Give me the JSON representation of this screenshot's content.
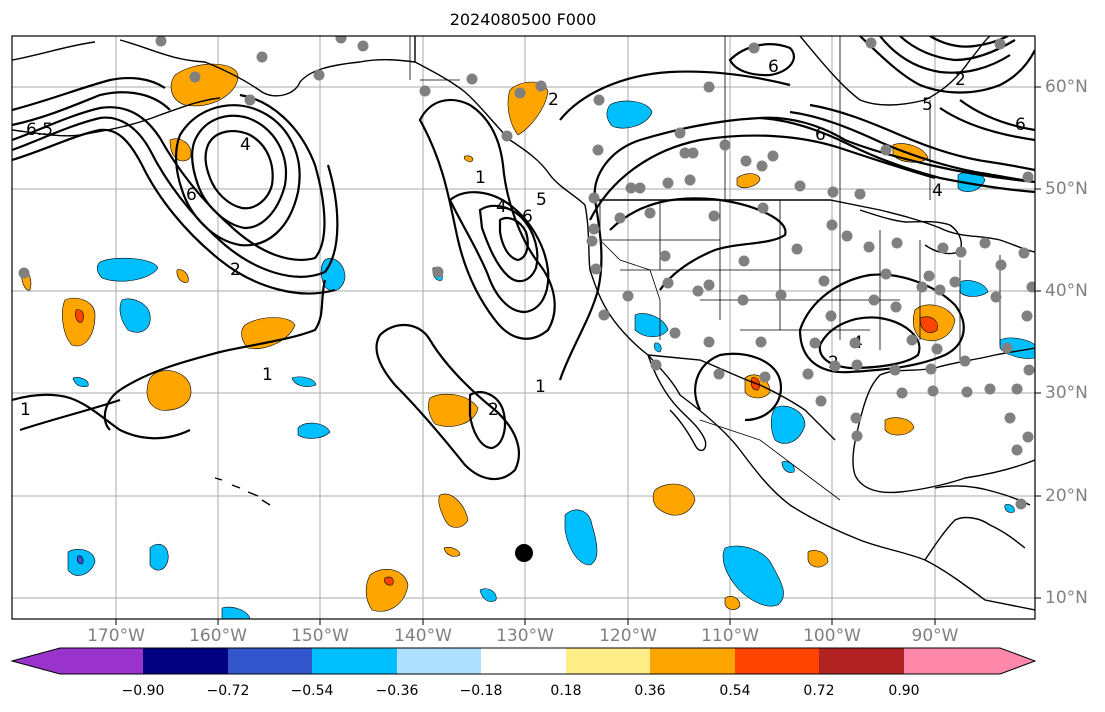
{
  "title": "2024080500 F000",
  "lon_labels": [
    "170°W",
    "160°W",
    "150°W",
    "140°W",
    "130°W",
    "120°W",
    "110°W",
    "100°W",
    "90°W"
  ],
  "lat_labels": [
    "60°N",
    "50°N",
    "40°N",
    "30°N",
    "20°N",
    "10°N"
  ],
  "colorbar": {
    "ticks": [
      "−0.90",
      "−0.72",
      "−0.54",
      "−0.36",
      "−0.18",
      "0.18",
      "0.36",
      "0.54",
      "0.72",
      "0.90"
    ],
    "colors": [
      "#9933cc",
      "#000080",
      "#3355cc",
      "#00bfff",
      "#aee0ff",
      "#ffffff",
      "#ffee88",
      "#ffa500",
      "#ff4400",
      "#b22222",
      "#ff88aa"
    ]
  },
  "contour_labels": [
    "6.5",
    "4",
    "6",
    "2",
    "1",
    "1",
    "2",
    "1",
    "4",
    "5",
    "6",
    "1",
    "2",
    "6",
    "6",
    "4",
    "2",
    "4",
    "2",
    "5",
    "6"
  ],
  "colors": {
    "contour": "#000000",
    "grid": "#aaaaaa",
    "coast": "#000000",
    "station": "#808080",
    "marker": "#000000"
  }
}
